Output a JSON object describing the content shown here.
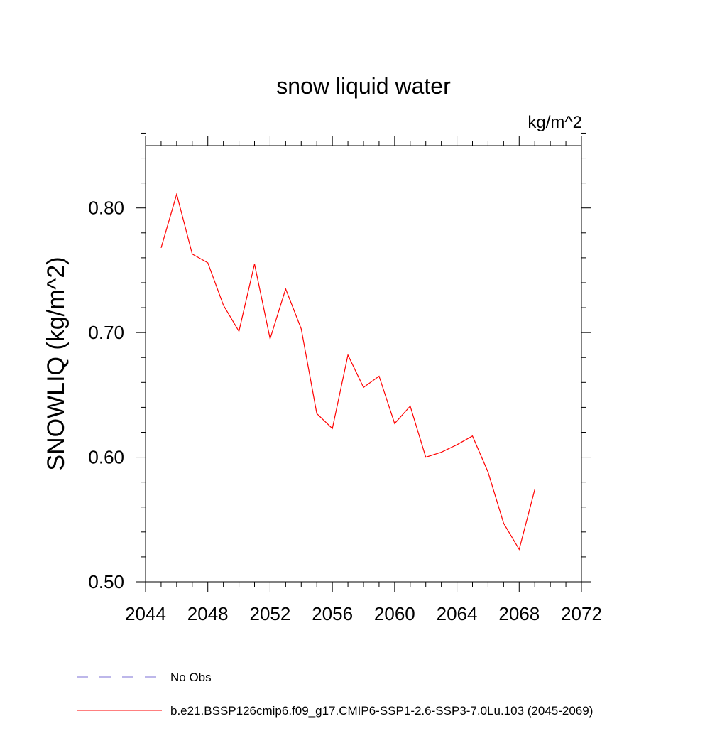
{
  "chart_data": {
    "type": "line",
    "title": "snow liquid water",
    "units_label": "kg/m^2",
    "ylabel": "SNOWLIQ  (kg/m^2)",
    "xlabel": "",
    "xlim": [
      2044,
      2072
    ],
    "ylim": [
      0.5,
      0.85
    ],
    "x_ticks": [
      2044,
      2048,
      2052,
      2056,
      2060,
      2064,
      2068,
      2072
    ],
    "x_tick_labels": [
      "2044",
      "2048",
      "2052",
      "2056",
      "2060",
      "2064",
      "2068",
      "2072"
    ],
    "y_ticks": [
      0.5,
      0.6,
      0.7,
      0.8
    ],
    "y_tick_labels": [
      "0.50",
      "0.60",
      "0.70",
      "0.80"
    ],
    "grid": false,
    "series": [
      {
        "name": "b.e21.BSSP126cmip6.f09_g17.CMIP6-SSP1-2.6-SSP3-7.0Lu.103 (2045-2069)",
        "color": "#ff0000",
        "x": [
          2045,
          2046,
          2047,
          2048,
          2049,
          2050,
          2051,
          2052,
          2053,
          2054,
          2055,
          2056,
          2057,
          2058,
          2059,
          2060,
          2061,
          2062,
          2063,
          2064,
          2065,
          2066,
          2067,
          2068,
          2069
        ],
        "values": [
          0.768,
          0.811,
          0.763,
          0.756,
          0.722,
          0.701,
          0.755,
          0.695,
          0.735,
          0.703,
          0.635,
          0.623,
          0.682,
          0.656,
          0.665,
          0.627,
          0.641,
          0.6,
          0.604,
          0.61,
          0.617,
          0.588,
          0.547,
          0.526,
          0.574
        ]
      }
    ],
    "legend": [
      {
        "label": "No Obs",
        "color": "#7b6fd6",
        "style": "dashed"
      },
      {
        "label": "b.e21.BSSP126cmip6.f09_g17.CMIP6-SSP1-2.6-SSP3-7.0Lu.103 (2045-2069)",
        "color": "#ff0000",
        "style": "solid"
      }
    ],
    "legend_position": "bottom"
  }
}
